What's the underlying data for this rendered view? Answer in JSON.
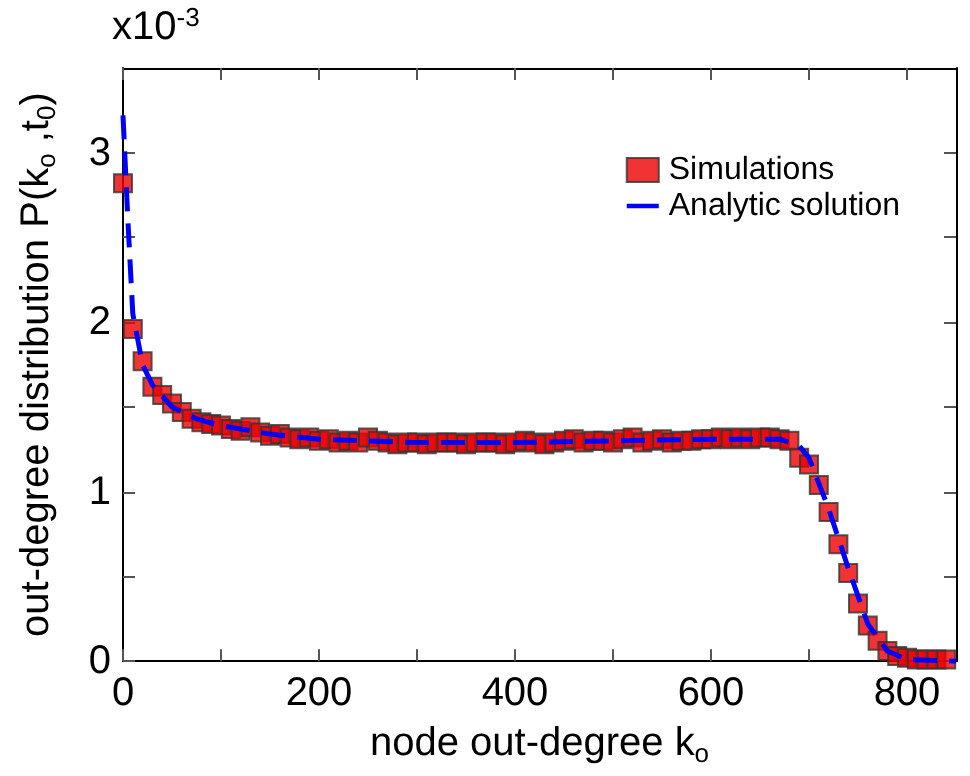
{
  "chart_data": {
    "type": "scatter",
    "xlabel": "node out-degree k$_{o}$",
    "ylabel": "out-degree distribution P(k$_{o}$ ,t$_{0}$)",
    "annotations": [
      "x10$^{-3}$"
    ],
    "xlim": [
      0,
      850
    ],
    "xticks": [
      0,
      {
        "value": 100,
        "label": null
      },
      200,
      {
        "value": 300,
        "label": null
      },
      400,
      {
        "value": 500,
        "label": null
      },
      600,
      {
        "value": 700,
        "label": null
      },
      800
    ],
    "ylim": [
      0,
      3.5
    ],
    "yticks": [
      0,
      {
        "value": 0.5,
        "label": null
      },
      1,
      {
        "value": 1.5,
        "label": null
      },
      2,
      {
        "value": 2.5,
        "label": null
      },
      3
    ],
    "grid": false,
    "legend": "top right",
    "series": [
      {
        "name": "Simulations",
        "type": "scatter",
        "marker": "square",
        "color": "#ee0000",
        "x": [
          0,
          10,
          20,
          30,
          40,
          50,
          60,
          70,
          80,
          90,
          100,
          110,
          120,
          130,
          140,
          150,
          160,
          170,
          180,
          190,
          200,
          210,
          220,
          230,
          240,
          250,
          260,
          270,
          280,
          290,
          300,
          310,
          320,
          330,
          340,
          350,
          360,
          370,
          380,
          390,
          400,
          410,
          420,
          430,
          440,
          450,
          460,
          470,
          480,
          490,
          500,
          510,
          520,
          530,
          540,
          550,
          560,
          570,
          580,
          590,
          600,
          610,
          620,
          630,
          640,
          650,
          660,
          670,
          680,
          690,
          700,
          710,
          720,
          730,
          740,
          750,
          760,
          770,
          780,
          790,
          800,
          810,
          820,
          830,
          840
        ],
        "values": [
          2.82,
          1.96,
          1.77,
          1.62,
          1.57,
          1.52,
          1.47,
          1.43,
          1.41,
          1.4,
          1.39,
          1.37,
          1.36,
          1.38,
          1.35,
          1.33,
          1.34,
          1.32,
          1.31,
          1.32,
          1.3,
          1.31,
          1.29,
          1.3,
          1.29,
          1.32,
          1.3,
          1.29,
          1.28,
          1.29,
          1.29,
          1.28,
          1.29,
          1.29,
          1.29,
          1.28,
          1.29,
          1.29,
          1.29,
          1.28,
          1.29,
          1.3,
          1.29,
          1.28,
          1.29,
          1.3,
          1.31,
          1.29,
          1.3,
          1.3,
          1.29,
          1.31,
          1.32,
          1.29,
          1.3,
          1.31,
          1.29,
          1.3,
          1.3,
          1.31,
          1.31,
          1.32,
          1.31,
          1.32,
          1.31,
          1.32,
          1.32,
          1.31,
          1.3,
          1.2,
          1.16,
          1.04,
          0.88,
          0.69,
          0.52,
          0.34,
          0.21,
          0.12,
          0.06,
          0.03,
          0.02,
          0.01,
          0.01,
          0.01,
          0.01
        ]
      },
      {
        "name": "Analytic solution",
        "type": "line",
        "marker": "none",
        "line_style": "dashed",
        "color": "#0000ff",
        "x": [
          0,
          5,
          10,
          20,
          30,
          50,
          75,
          100,
          150,
          200,
          300,
          400,
          500,
          600,
          670,
          690,
          700,
          720,
          740,
          760,
          780,
          800,
          850
        ],
        "values": [
          3.22,
          2.6,
          2.05,
          1.75,
          1.63,
          1.5,
          1.43,
          1.39,
          1.34,
          1.31,
          1.29,
          1.29,
          1.3,
          1.31,
          1.31,
          1.27,
          1.2,
          0.9,
          0.55,
          0.22,
          0.06,
          0.01,
          0
        ]
      }
    ]
  }
}
